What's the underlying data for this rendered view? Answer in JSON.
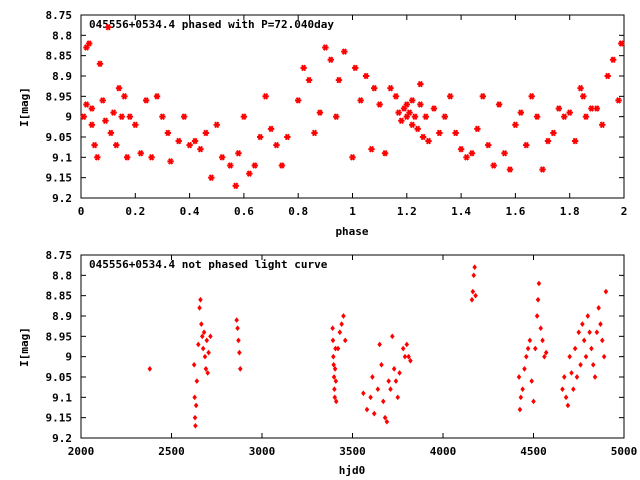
{
  "chart_data": [
    {
      "type": "scatter",
      "title": "045556+0534.4 phased with P=72.040day",
      "xlabel": "phase",
      "ylabel": "I[mag]",
      "xlim": [
        0,
        2
      ],
      "ylim": [
        9.2,
        8.75
      ],
      "y_inverted": true,
      "x_ticks": [
        "0",
        "0.2",
        "0.4",
        "0.6",
        "0.8",
        "1",
        "1.2",
        "1.4",
        "1.6",
        "1.8",
        "2"
      ],
      "y_ticks": [
        "8.75",
        "8.8",
        "8.85",
        "8.9",
        "8.95",
        "9",
        "9.05",
        "9.1",
        "9.15",
        "9.2"
      ],
      "marker": "star",
      "color": "#ff0000",
      "grid": false,
      "series": [
        {
          "points": [
            [
              0.01,
              9.0
            ],
            [
              0.02,
              8.83
            ],
            [
              0.02,
              8.97
            ],
            [
              0.03,
              8.82
            ],
            [
              0.04,
              9.02
            ],
            [
              0.04,
              8.98
            ],
            [
              0.05,
              9.07
            ],
            [
              0.06,
              9.1
            ],
            [
              0.07,
              8.87
            ],
            [
              0.08,
              8.96
            ],
            [
              0.09,
              9.01
            ],
            [
              0.1,
              8.78
            ],
            [
              0.11,
              9.04
            ],
            [
              0.12,
              8.99
            ],
            [
              0.13,
              9.07
            ],
            [
              0.14,
              8.93
            ],
            [
              0.15,
              9.0
            ],
            [
              0.16,
              8.95
            ],
            [
              0.17,
              9.1
            ],
            [
              0.18,
              9.0
            ],
            [
              0.2,
              9.02
            ],
            [
              0.22,
              9.09
            ],
            [
              0.24,
              8.96
            ],
            [
              0.26,
              9.1
            ],
            [
              0.28,
              8.95
            ],
            [
              0.3,
              9.0
            ],
            [
              0.32,
              9.04
            ],
            [
              0.33,
              9.11
            ],
            [
              0.36,
              9.06
            ],
            [
              0.38,
              9.0
            ],
            [
              0.4,
              9.07
            ],
            [
              0.42,
              9.06
            ],
            [
              0.44,
              9.08
            ],
            [
              0.46,
              9.04
            ],
            [
              0.48,
              9.15
            ],
            [
              0.5,
              9.02
            ],
            [
              0.52,
              9.1
            ],
            [
              0.55,
              9.12
            ],
            [
              0.57,
              9.17
            ],
            [
              0.58,
              9.09
            ],
            [
              0.6,
              9.0
            ],
            [
              0.62,
              9.14
            ],
            [
              0.64,
              9.12
            ],
            [
              0.66,
              9.05
            ],
            [
              0.68,
              8.95
            ],
            [
              0.7,
              9.03
            ],
            [
              0.72,
              9.07
            ],
            [
              0.74,
              9.12
            ],
            [
              0.76,
              9.05
            ],
            [
              0.8,
              8.96
            ],
            [
              0.82,
              8.88
            ],
            [
              0.84,
              8.91
            ],
            [
              0.86,
              9.04
            ],
            [
              0.88,
              8.99
            ],
            [
              0.9,
              8.83
            ],
            [
              0.92,
              8.86
            ],
            [
              0.94,
              9.0
            ],
            [
              0.95,
              8.91
            ],
            [
              0.97,
              8.84
            ],
            [
              1.0,
              9.1
            ],
            [
              1.01,
              8.88
            ],
            [
              1.03,
              8.96
            ],
            [
              1.05,
              8.9
            ],
            [
              1.07,
              9.08
            ],
            [
              1.08,
              8.93
            ],
            [
              1.1,
              8.97
            ],
            [
              1.12,
              9.09
            ],
            [
              1.14,
              8.93
            ],
            [
              1.16,
              8.95
            ],
            [
              1.17,
              8.99
            ],
            [
              1.18,
              9.01
            ],
            [
              1.19,
              8.98
            ],
            [
              1.2,
              8.97
            ],
            [
              1.2,
              9.0
            ],
            [
              1.21,
              8.99
            ],
            [
              1.22,
              9.02
            ],
            [
              1.22,
              8.96
            ],
            [
              1.23,
              9.0
            ],
            [
              1.24,
              9.03
            ],
            [
              1.25,
              8.97
            ],
            [
              1.25,
              8.92
            ],
            [
              1.26,
              9.05
            ],
            [
              1.27,
              9.0
            ],
            [
              1.28,
              9.06
            ],
            [
              1.3,
              8.98
            ],
            [
              1.32,
              9.04
            ],
            [
              1.34,
              9.0
            ],
            [
              1.36,
              8.95
            ],
            [
              1.38,
              9.04
            ],
            [
              1.4,
              9.08
            ],
            [
              1.42,
              9.1
            ],
            [
              1.44,
              9.09
            ],
            [
              1.46,
              9.03
            ],
            [
              1.48,
              8.95
            ],
            [
              1.5,
              9.07
            ],
            [
              1.52,
              9.12
            ],
            [
              1.54,
              8.97
            ],
            [
              1.56,
              9.09
            ],
            [
              1.58,
              9.13
            ],
            [
              1.6,
              9.02
            ],
            [
              1.62,
              8.99
            ],
            [
              1.64,
              9.07
            ],
            [
              1.66,
              8.95
            ],
            [
              1.68,
              9.0
            ],
            [
              1.7,
              9.13
            ],
            [
              1.72,
              9.06
            ],
            [
              1.74,
              9.04
            ],
            [
              1.76,
              8.98
            ],
            [
              1.78,
              9.0
            ],
            [
              1.8,
              8.99
            ],
            [
              1.82,
              9.06
            ],
            [
              1.84,
              8.93
            ],
            [
              1.85,
              8.95
            ],
            [
              1.86,
              9.0
            ],
            [
              1.88,
              8.98
            ],
            [
              1.9,
              8.98
            ],
            [
              1.92,
              9.02
            ],
            [
              1.94,
              8.9
            ],
            [
              1.96,
              8.86
            ],
            [
              1.98,
              8.96
            ],
            [
              1.99,
              8.82
            ]
          ]
        }
      ]
    },
    {
      "type": "scatter",
      "title": "045556+0534.4 not phased light curve",
      "xlabel": "hjd0",
      "ylabel": "I[mag]",
      "xlim": [
        2000,
        5000
      ],
      "ylim": [
        9.2,
        8.75
      ],
      "y_inverted": true,
      "x_ticks": [
        "2000",
        "2500",
        "3000",
        "3500",
        "4000",
        "4500",
        "5000"
      ],
      "y_ticks": [
        "8.75",
        "8.8",
        "8.85",
        "8.9",
        "8.95",
        "9",
        "9.05",
        "9.1",
        "9.15",
        "9.2"
      ],
      "marker": "diamond",
      "color": "#ff0000",
      "grid": false,
      "series": [
        {
          "points": [
            [
              2380,
              9.03
            ],
            [
              2625,
              9.02
            ],
            [
              2628,
              9.1
            ],
            [
              2630,
              9.15
            ],
            [
              2632,
              9.17
            ],
            [
              2636,
              9.12
            ],
            [
              2640,
              9.06
            ],
            [
              2648,
              8.97
            ],
            [
              2655,
              8.88
            ],
            [
              2660,
              8.86
            ],
            [
              2665,
              8.92
            ],
            [
              2670,
              8.95
            ],
            [
              2675,
              8.98
            ],
            [
              2680,
              8.94
            ],
            [
              2685,
              9.0
            ],
            [
              2690,
              9.03
            ],
            [
              2695,
              8.96
            ],
            [
              2700,
              9.04
            ],
            [
              2705,
              8.99
            ],
            [
              2715,
              8.95
            ],
            [
              2860,
              8.91
            ],
            [
              2865,
              8.93
            ],
            [
              2870,
              8.96
            ],
            [
              2875,
              8.99
            ],
            [
              2880,
              9.03
            ],
            [
              3390,
              8.93
            ],
            [
              3392,
              8.96
            ],
            [
              3394,
              9.0
            ],
            [
              3396,
              9.02
            ],
            [
              3398,
              9.05
            ],
            [
              3400,
              9.08
            ],
            [
              3402,
              9.1
            ],
            [
              3404,
              9.03
            ],
            [
              3406,
              8.98
            ],
            [
              3408,
              9.06
            ],
            [
              3410,
              9.11
            ],
            [
              3420,
              8.98
            ],
            [
              3430,
              8.94
            ],
            [
              3440,
              8.92
            ],
            [
              3450,
              8.9
            ],
            [
              3460,
              8.96
            ],
            [
              3560,
              9.09
            ],
            [
              3580,
              9.13
            ],
            [
              3600,
              9.1
            ],
            [
              3610,
              9.05
            ],
            [
              3620,
              9.14
            ],
            [
              3640,
              9.08
            ],
            [
              3650,
              8.97
            ],
            [
              3660,
              9.02
            ],
            [
              3670,
              9.11
            ],
            [
              3680,
              9.15
            ],
            [
              3690,
              9.16
            ],
            [
              3700,
              9.06
            ],
            [
              3710,
              9.08
            ],
            [
              3720,
              8.95
            ],
            [
              3730,
              9.03
            ],
            [
              3740,
              9.06
            ],
            [
              3750,
              9.1
            ],
            [
              3760,
              9.04
            ],
            [
              3780,
              8.98
            ],
            [
              3790,
              9.0
            ],
            [
              3800,
              8.97
            ],
            [
              3810,
              9.0
            ],
            [
              3820,
              9.01
            ],
            [
              4160,
              8.86
            ],
            [
              4165,
              8.84
            ],
            [
              4170,
              8.8
            ],
            [
              4175,
              8.78
            ],
            [
              4180,
              8.85
            ],
            [
              4420,
              9.05
            ],
            [
              4425,
              9.13
            ],
            [
              4430,
              9.1
            ],
            [
              4440,
              9.08
            ],
            [
              4450,
              9.03
            ],
            [
              4460,
              9.0
            ],
            [
              4470,
              8.98
            ],
            [
              4480,
              8.96
            ],
            [
              4490,
              9.06
            ],
            [
              4500,
              9.11
            ],
            [
              4510,
              8.98
            ],
            [
              4520,
              8.9
            ],
            [
              4525,
              8.86
            ],
            [
              4530,
              8.82
            ],
            [
              4540,
              8.93
            ],
            [
              4550,
              8.96
            ],
            [
              4560,
              9.0
            ],
            [
              4570,
              8.99
            ],
            [
              4660,
              9.08
            ],
            [
              4670,
              9.05
            ],
            [
              4680,
              9.1
            ],
            [
              4690,
              9.12
            ],
            [
              4700,
              9.0
            ],
            [
              4710,
              9.04
            ],
            [
              4720,
              9.08
            ],
            [
              4730,
              8.98
            ],
            [
              4740,
              9.05
            ],
            [
              4750,
              8.94
            ],
            [
              4760,
              9.02
            ],
            [
              4770,
              8.92
            ],
            [
              4780,
              8.96
            ],
            [
              4790,
              9.0
            ],
            [
              4800,
              8.9
            ],
            [
              4810,
              8.94
            ],
            [
              4820,
              8.98
            ],
            [
              4830,
              9.02
            ],
            [
              4840,
              9.05
            ],
            [
              4850,
              8.94
            ],
            [
              4860,
              8.88
            ],
            [
              4870,
              8.92
            ],
            [
              4880,
              8.96
            ],
            [
              4890,
              9.0
            ],
            [
              4900,
              8.84
            ]
          ]
        }
      ]
    }
  ]
}
